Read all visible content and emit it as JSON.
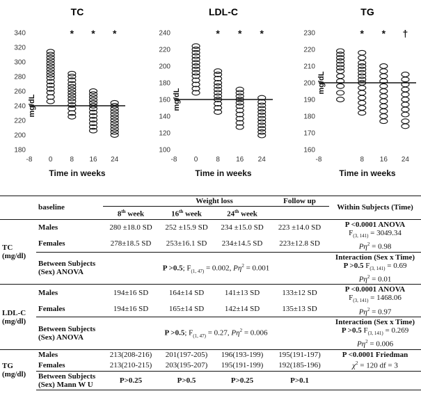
{
  "chart_data": [
    {
      "type": "scatter",
      "title": "TC",
      "xlabel": "Time in weeks",
      "ylabel": "mg/dL",
      "xlim": [
        -8,
        28
      ],
      "ylim": [
        180,
        340
      ],
      "xticks": [
        "-8",
        "0",
        "8",
        "16",
        "24"
      ],
      "yticks": [
        180,
        200,
        220,
        240,
        260,
        280,
        300,
        320,
        340
      ],
      "reference_line": 240,
      "significance": [
        {
          "x": 8,
          "mark": "*"
        },
        {
          "x": 16,
          "mark": "*"
        },
        {
          "x": 24,
          "mark": "*"
        }
      ],
      "series": [
        {
          "x": 0,
          "values": [
            246,
            252,
            258,
            263,
            268,
            273,
            278,
            282,
            286,
            290,
            294,
            298,
            302,
            306,
            310,
            314
          ]
        },
        {
          "x": 8,
          "values": [
            225,
            230,
            236,
            241,
            246,
            250,
            254,
            258,
            262,
            266,
            270,
            275,
            280,
            284
          ]
        },
        {
          "x": 16,
          "values": [
            206,
            211,
            216,
            221,
            226,
            231,
            236,
            240,
            244,
            248,
            252,
            256,
            260
          ]
        },
        {
          "x": 24,
          "values": [
            200,
            204,
            208,
            212,
            216,
            220,
            224,
            228,
            232,
            236,
            240,
            244
          ]
        }
      ]
    },
    {
      "type": "scatter",
      "title": "LDL-C",
      "xlabel": "Time in weeks",
      "ylabel": "mg/dL",
      "xlim": [
        -8,
        28
      ],
      "ylim": [
        100,
        240
      ],
      "xticks": [
        "-8",
        "0",
        "8",
        "16",
        "24"
      ],
      "yticks": [
        100,
        120,
        140,
        160,
        180,
        200,
        220,
        240
      ],
      "reference_line": 160,
      "significance": [
        {
          "x": 8,
          "mark": "*"
        },
        {
          "x": 16,
          "mark": "*"
        },
        {
          "x": 24,
          "mark": "*"
        }
      ],
      "series": [
        {
          "x": 0,
          "values": [
            168,
            173,
            178,
            183,
            188,
            192,
            196,
            200,
            204,
            208,
            212,
            216,
            220,
            224
          ]
        },
        {
          "x": 8,
          "values": [
            145,
            150,
            155,
            160,
            164,
            168,
            172,
            176,
            180,
            185,
            190,
            194
          ]
        },
        {
          "x": 16,
          "values": [
            127,
            132,
            137,
            142,
            147,
            152,
            156,
            160,
            164,
            168,
            172
          ]
        },
        {
          "x": 24,
          "values": [
            117,
            121,
            125,
            129,
            133,
            137,
            141,
            145,
            149,
            153,
            157,
            162
          ]
        }
      ]
    },
    {
      "type": "scatter",
      "title": "TG",
      "xlabel": "Time in weeks",
      "ylabel": "mg/dL",
      "xlim": [
        -8,
        28
      ],
      "ylim": [
        160,
        230
      ],
      "xticks": [
        "-8",
        "8",
        "16",
        "24"
      ],
      "yticks": [
        160,
        170,
        180,
        190,
        200,
        210,
        220,
        230
      ],
      "reference_line": 200,
      "significance": [
        {
          "x": 8,
          "mark": "*"
        },
        {
          "x": 16,
          "mark": "*"
        },
        {
          "x": 24,
          "mark": "†"
        }
      ],
      "series": [
        {
          "x": 0,
          "values": [
            190,
            194,
            198,
            201,
            204,
            207,
            209,
            211,
            213,
            215,
            217,
            219
          ]
        },
        {
          "x": 8,
          "values": [
            182,
            185,
            188,
            191,
            194,
            197,
            200,
            202,
            204,
            206,
            208,
            210,
            212,
            215,
            218
          ]
        },
        {
          "x": 16,
          "values": [
            177,
            180,
            183,
            186,
            189,
            192,
            195,
            198,
            201,
            204,
            207,
            210
          ]
        },
        {
          "x": 24,
          "values": [
            174,
            177,
            181,
            184,
            187,
            190,
            193,
            196,
            199,
            202,
            205
          ]
        }
      ]
    }
  ],
  "table": {
    "header": {
      "baseline": "baseline",
      "weight_loss": "Weight loss",
      "follow_up": "Follow up",
      "within": "Within Subjects (Time)",
      "w8": "8",
      "w16": "16",
      "w24": "24",
      "th": "th",
      "week": " week"
    },
    "tc": {
      "label": "TC",
      "unit": "(mg/dl)",
      "males": {
        "label": "Males",
        "baseline": "280 ±18.0 SD",
        "w8": "252 ±15.9 SD",
        "w16": "234 ±15.0 SD",
        "w24": "223 ±14.0 SD"
      },
      "females": {
        "label": "Females",
        "baseline": "278±18.5 SD",
        "w8": "253±16.1 SD",
        "w16": "234±14.5 SD",
        "w24": "223±12.8 SD"
      },
      "within": {
        "p": "P <0.0001 ANOVA",
        "f": "F",
        "f_sub": "(3, 141)",
        "f_val": " = 3049.34",
        "eta": "Pη",
        "eta_sup": "2",
        "eta_val": " = 0.98"
      },
      "between": {
        "label": "Between Subjects (Sex) ANOVA",
        "p": "P >0.5",
        "f": "; F",
        "f_sub": "(1, 47)",
        "f_val": " = 0.002, ",
        "eta": "Pη",
        "eta_sup": "2",
        "eta_val": " = 0.001"
      },
      "interaction": {
        "title": "Interaction (Sex x Time)",
        "p": "P >0.5",
        "f": " F",
        "f_sub": "(3, 141)",
        "f_val": " = 0.69",
        "eta": "Pη",
        "eta_sup": "2",
        "eta_val": " = 0.01"
      }
    },
    "ldl": {
      "label": "LDL-C",
      "unit": "(mg/dl)",
      "males": {
        "label": "Males",
        "baseline": "194±16 SD",
        "w8": "164±14 SD",
        "w16": "141±13 SD",
        "w24": "133±12 SD"
      },
      "females": {
        "label": "Females",
        "baseline": "194±16 SD",
        "w8": "165±14 SD",
        "w16": "142±14 SD",
        "w24": "135±13 SD"
      },
      "within": {
        "p": "P <0.0001 ANOVA",
        "f": "F",
        "f_sub": "(3, 141)",
        "f_val": " = 1468.06",
        "eta": "Pη",
        "eta_sup": "2",
        "eta_val": " = 0.97"
      },
      "between": {
        "label": "Between Subjects (Sex) ANOVA",
        "p": "P >0.5",
        "f": "; F",
        "f_sub": "(1, 47)",
        "f_val": " = 0.27, ",
        "eta": "Pη",
        "eta_sup": "2",
        "eta_val": " = 0.006"
      },
      "interaction": {
        "title": "Interaction (Sex x Time)",
        "p": "P >0.5",
        "f": " F",
        "f_sub": "(3, 141)",
        "f_val": " = 0.269",
        "eta": "Pη",
        "eta_sup": "2",
        "eta_val": " = 0.006"
      }
    },
    "tg": {
      "label": "TG",
      "unit": "(mg/dl)",
      "males": {
        "label": "Males",
        "baseline": "213(208-216)",
        "w8": "201(197-205)",
        "w16": "196(193-199)",
        "w24": "195(191-197)"
      },
      "females": {
        "label": "Females",
        "baseline": "213(210-215)",
        "w8": "203(195-207)",
        "w16": "195(191-199)",
        "w24": "192(185-196)"
      },
      "within": {
        "p": "P <0.0001 Friedman",
        "chi": "χ",
        "chi_sup": "2",
        "chi_val": " = 120 df = 3"
      },
      "between": {
        "label": "Between Subjects (Sex) Mann W U",
        "baseline": "P>0.25",
        "w8": "P>0.5",
        "w16": "P>0.25",
        "w24": "P>0.1"
      }
    }
  }
}
